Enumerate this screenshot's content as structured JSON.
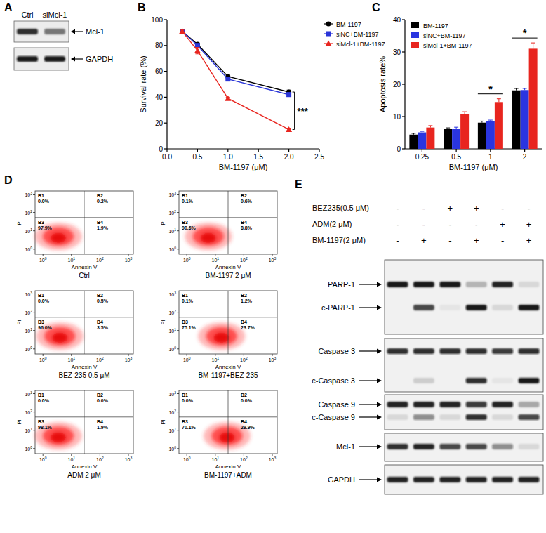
{
  "panel_labels": [
    "A",
    "B",
    "C",
    "D",
    "E"
  ],
  "blot_a": {
    "lanes": [
      "Ctrl",
      "siMcl-1"
    ],
    "bands": [
      {
        "label": "Mcl-1",
        "intensity": [
          0.85,
          0.55
        ]
      },
      {
        "label": "GAPDH",
        "intensity": [
          0.95,
          0.95
        ]
      }
    ]
  },
  "chart_data": [
    {
      "type": "line",
      "x_label": "BM-1197 (μM)",
      "y_label": "Survival rate (%)",
      "x": [
        0.25,
        0.5,
        1,
        2
      ],
      "series": [
        {
          "name": "BM-1197",
          "color": "#000000",
          "marker": "circle",
          "values": [
            91,
            81,
            56,
            44
          ],
          "errors": [
            1,
            1,
            1.5,
            1.5
          ]
        },
        {
          "name": "siNC+BM-1197",
          "color": "#2a35d8",
          "marker": "square",
          "values": [
            91,
            80,
            54,
            42
          ],
          "errors": [
            1,
            1.5,
            1.5,
            1.5
          ]
        },
        {
          "name": "siMcl-1+BM-1197",
          "color": "#e8251f",
          "marker": "triangle",
          "values": [
            91,
            76,
            39,
            15
          ],
          "errors": [
            1,
            2.5,
            1,
            1
          ]
        }
      ],
      "xlim": [
        0,
        2.5
      ],
      "xticks": [
        {
          "value": 0,
          "label": "0.0"
        },
        0.5,
        {
          "value": 1,
          "label": "1.0"
        },
        1.5,
        {
          "value": 2,
          "label": "2.0"
        },
        2.5
      ],
      "ylim": [
        0,
        100
      ],
      "yticks": [
        0,
        20,
        40,
        60,
        80,
        100
      ],
      "legend": "right",
      "annotations": [
        {
          "text": "***",
          "x": 2
        }
      ]
    },
    {
      "type": "bar",
      "x_label": "BM-1197 (μM)",
      "y_label": "Apoptosis rate%",
      "categories": [
        "0.25",
        "0.5",
        "1",
        "2"
      ],
      "series": [
        {
          "name": "BM-1197",
          "color": "#000000",
          "values": [
            4.4,
            6.2,
            8.1,
            18.1
          ],
          "errors": [
            0.4,
            0.3,
            0.5,
            0.6
          ]
        },
        {
          "name": "siNC+BM-1197",
          "color": "#2a35e0",
          "values": [
            5.1,
            6.3,
            8.6,
            18.2
          ],
          "errors": [
            0.3,
            0.4,
            0.3,
            0.5
          ]
        },
        {
          "name": "siMcl-1+BM-1197",
          "color": "#e8251f",
          "values": [
            6.6,
            10.7,
            14.5,
            31.0
          ],
          "errors": [
            0.6,
            0.8,
            1.0,
            1.8
          ]
        }
      ],
      "ylim": [
        0,
        40
      ],
      "yticks": [
        0,
        10,
        20,
        30,
        40
      ],
      "legend": "upper left",
      "annotations": [
        {
          "text": "*",
          "category": 2
        },
        {
          "text": "*",
          "category": 3
        }
      ]
    }
  ],
  "flow_d": {
    "x_label": "Annexin V",
    "y_label": "PI",
    "tick_base": "10",
    "tick_exponents": [
      "0",
      "1",
      "2",
      "3"
    ],
    "quadrant_names": [
      "B1",
      "B2",
      "B3",
      "B4"
    ],
    "plots": [
      {
        "title": "Ctrl",
        "quadrants": [
          "0.0%",
          "0.2%",
          "97.9%",
          "1.9%"
        ]
      },
      {
        "title": "BM-1197 2 μM",
        "quadrants": [
          "0.1%",
          "0.6%",
          "90.6%",
          "8.8%"
        ]
      },
      {
        "title": "BEZ-235 0.5 μM",
        "quadrants": [
          "0.0%",
          "0.5%",
          "96.0%",
          "3.5%"
        ]
      },
      {
        "title": "BM-1197+BEZ-235",
        "quadrants": [
          "0.1%",
          "1.2%",
          "75.1%",
          "23.7%"
        ]
      },
      {
        "title": "ADM 2 μM",
        "quadrants": [
          "0.0%",
          "0.0%",
          "98.1%",
          "1.9%"
        ]
      },
      {
        "title": "BM-1197+ADM",
        "quadrants": [
          "0.0%",
          "0.0%",
          "70.1%",
          "29.9%"
        ]
      }
    ]
  },
  "blot_e": {
    "treatments": [
      {
        "label": "BEZ235(0.5 μM)",
        "signs": [
          "-",
          "-",
          "+",
          "+",
          "-",
          "-"
        ]
      },
      {
        "label": "ADM(2 μM)",
        "signs": [
          "-",
          "-",
          "-",
          "-",
          "+",
          "+"
        ]
      },
      {
        "label": "BM-1197(2 μM)",
        "signs": [
          "-",
          "+",
          "-",
          "+",
          "-",
          "+"
        ]
      }
    ],
    "blots": [
      {
        "bands": [
          {
            "label": "PARP-1",
            "intensity": [
              0.95,
              0.95,
              0.95,
              0.25,
              0.9,
              0.1
            ]
          },
          {
            "label": "c-PARP-1",
            "intensity": [
              0,
              0.75,
              0.05,
              0.95,
              0.1,
              0.95
            ]
          }
        ]
      },
      {
        "bands": [
          {
            "label": "Caspase 3",
            "intensity": [
              0.85,
              0.85,
              0.85,
              0.85,
              0.8,
              0.85
            ]
          },
          {
            "label": "c-Caspase 3",
            "intensity": [
              0,
              0.15,
              0,
              0.85,
              0.05,
              0.95
            ]
          }
        ]
      },
      {
        "bands": [
          {
            "label": "Caspase 9",
            "intensity": [
              0.9,
              0.9,
              0.9,
              0.8,
              0.9,
              0.3
            ]
          },
          {
            "label": "c-Caspase 9",
            "intensity": [
              0.1,
              0.45,
              0.1,
              0.85,
              0.1,
              0.75
            ]
          }
        ]
      },
      {
        "bands": [
          {
            "label": "Mcl-1",
            "intensity": [
              0.85,
              0.9,
              0.75,
              0.75,
              0.45,
              0.1
            ]
          }
        ]
      },
      {
        "bands": [
          {
            "label": "GAPDH",
            "intensity": [
              0.9,
              0.9,
              0.9,
              0.9,
              0.9,
              0.9
            ]
          }
        ]
      }
    ]
  }
}
